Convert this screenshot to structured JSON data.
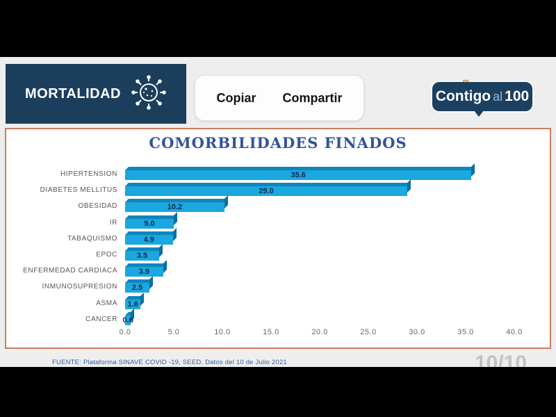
{
  "header": {
    "title": "MORTALIDAD",
    "copy_label": "Copiar",
    "share_label": "Compartir",
    "logo": {
      "part1": "Contigo",
      "part2": "al",
      "part3": "100"
    }
  },
  "colors": {
    "header_navy": "#1A3E5C",
    "bar_blue": "#1BA7DF",
    "chart_border_salmon": "#C97D61",
    "title_blue": "#31529B"
  },
  "chart_data": {
    "type": "bar",
    "orientation": "horizontal",
    "title": "COMORBILIDADES FINADOS",
    "categories": [
      "HIPERTENSION",
      "DIABETES MELLITUS",
      "OBESIDAD",
      "IR",
      "TABAQUISMO",
      "EPOC",
      "ENFERMEDAD CARDIACA",
      "INMUNOSUPRESION",
      "ASMA",
      "CANCER"
    ],
    "values": [
      35.6,
      29.0,
      10.2,
      5.0,
      4.9,
      3.5,
      3.9,
      2.5,
      1.6,
      0.6
    ],
    "xlim": [
      0,
      40
    ],
    "x_ticks": [
      "0.0",
      "5.0",
      "10.0",
      "15.0",
      "20.0",
      "25.0",
      "30.0",
      "35.0",
      "40.0"
    ],
    "grid": false,
    "legend": false,
    "bar_color": "#1BA7DF",
    "value_labels_shown": true
  },
  "footer": {
    "source": "FUENTE: Plataforma SINAVE COVID -19, SEED. Datos del 10 de  Julio 2021",
    "page_indicator": "10/10"
  }
}
